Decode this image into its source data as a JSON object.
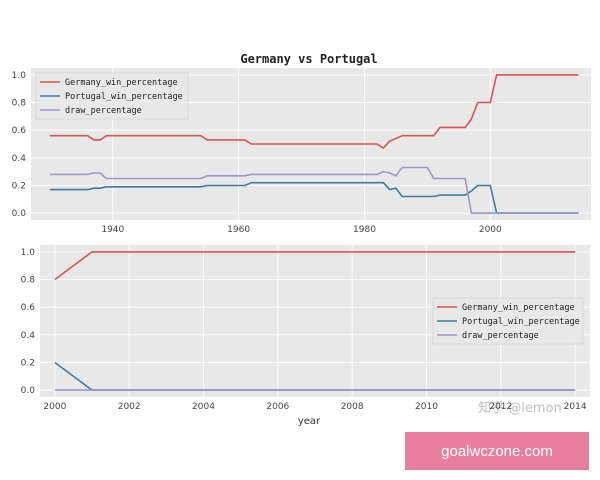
{
  "title": "Germany vs Portugal",
  "xlabel": "year",
  "watermark": "知乎 @lemon",
  "badge": "goalwczone.com",
  "colors": {
    "germany": "#d9534f",
    "portugal": "#3a7ca5",
    "draw": "#9b97c7",
    "panel_bg": "#e8e8e8",
    "grid": "#ffffff"
  },
  "chart_data": [
    {
      "type": "line",
      "title": "Germany vs Portugal",
      "xlabel": "",
      "ylabel": "",
      "xlim": [
        1927,
        2016
      ],
      "ylim": [
        -0.05,
        1.05
      ],
      "xticks": [
        1940,
        1960,
        1980,
        2000
      ],
      "xtick_labels": [
        "1940",
        "1960",
        "1980",
        "2000"
      ],
      "yticks": [
        0.0,
        0.2,
        0.4,
        0.6,
        0.8,
        1.0
      ],
      "ytick_labels": [
        "0.0",
        "0.2",
        "0.4",
        "0.6",
        "0.8",
        "1.0"
      ],
      "legend": "top-left",
      "grid": true,
      "series": [
        {
          "name": "Germany_win_percentage",
          "color_key": "germany",
          "x": [
            1930,
            1936,
            1937,
            1938,
            1939,
            1954,
            1955,
            1961,
            1962,
            1982,
            1983,
            1984,
            1986,
            1987,
            1991,
            1992,
            1995,
            1996,
            1997,
            1998,
            2000,
            2001,
            2014
          ],
          "y": [
            0.56,
            0.56,
            0.53,
            0.53,
            0.56,
            0.56,
            0.53,
            0.53,
            0.5,
            0.5,
            0.47,
            0.52,
            0.56,
            0.56,
            0.56,
            0.62,
            0.62,
            0.62,
            0.68,
            0.8,
            0.8,
            1.0,
            1.0
          ]
        },
        {
          "name": "Portugal_win_percentage",
          "color_key": "portugal",
          "x": [
            1930,
            1936,
            1937,
            1938,
            1939,
            1954,
            1955,
            1961,
            1962,
            1982,
            1983,
            1984,
            1985,
            1986,
            1987,
            1991,
            1992,
            1996,
            1997,
            1998,
            2000,
            2001,
            2014
          ],
          "y": [
            0.17,
            0.17,
            0.18,
            0.18,
            0.19,
            0.19,
            0.2,
            0.2,
            0.22,
            0.22,
            0.22,
            0.17,
            0.18,
            0.12,
            0.12,
            0.12,
            0.13,
            0.13,
            0.16,
            0.2,
            0.2,
            0.0,
            0.0
          ]
        },
        {
          "name": "draw_percentage",
          "color_key": "draw",
          "x": [
            1930,
            1936,
            1937,
            1938,
            1939,
            1954,
            1955,
            1961,
            1962,
            1982,
            1983,
            1984,
            1985,
            1986,
            1987,
            1990,
            1991,
            1996,
            1997,
            2014
          ],
          "y": [
            0.28,
            0.28,
            0.29,
            0.29,
            0.25,
            0.25,
            0.27,
            0.27,
            0.28,
            0.28,
            0.3,
            0.29,
            0.27,
            0.33,
            0.33,
            0.33,
            0.25,
            0.25,
            0.0,
            0.0
          ]
        }
      ]
    },
    {
      "type": "line",
      "title": "",
      "xlabel": "year",
      "ylabel": "",
      "xlim": [
        1999.6,
        2014.4
      ],
      "ylim": [
        -0.05,
        1.05
      ],
      "xticks": [
        2000,
        2002,
        2004,
        2006,
        2008,
        2010,
        2012,
        2014
      ],
      "xtick_labels": [
        "2000",
        "2002",
        "2004",
        "2006",
        "2008",
        "2010",
        "2012",
        "2014"
      ],
      "yticks": [
        0.0,
        0.2,
        0.4,
        0.6,
        0.8,
        1.0
      ],
      "ytick_labels": [
        "0.0",
        "0.2",
        "0.4",
        "0.6",
        "0.8",
        "1.0"
      ],
      "legend": "center-right",
      "grid": true,
      "series": [
        {
          "name": "Germany_win_percentage",
          "color_key": "germany",
          "x": [
            2000,
            2001,
            2014
          ],
          "y": [
            0.8,
            1.0,
            1.0
          ]
        },
        {
          "name": "Portugal_win_percentage",
          "color_key": "portugal",
          "x": [
            2000,
            2001,
            2014
          ],
          "y": [
            0.2,
            0.0,
            0.0
          ]
        },
        {
          "name": "draw_percentage",
          "color_key": "draw",
          "x": [
            2000,
            2001,
            2014
          ],
          "y": [
            0.0,
            0.0,
            0.0
          ]
        }
      ]
    }
  ]
}
